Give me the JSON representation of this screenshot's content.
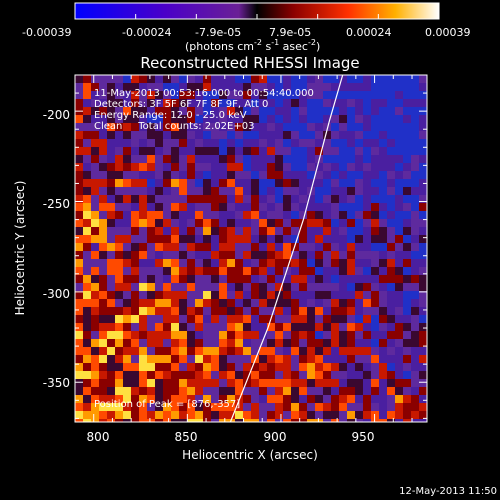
{
  "colorbar": {
    "tick_labels": [
      "-0.00039",
      "-0.00024",
      "-7.9e-05",
      "7.9e-05",
      "0.00024",
      "0.00039"
    ],
    "unit_main": "(photons cm",
    "unit_exp1": "-2",
    "unit_mid": " s",
    "unit_exp2": "-1",
    "unit_mid2": " asec",
    "unit_exp3": "-2",
    "unit_close": ")",
    "range": [
      -0.00039,
      0.00039
    ]
  },
  "info": {
    "line1": "11-May-2013 00:53:16.000 to 00:54:40.000",
    "line2": "Detectors: 3F 5F 6F 7F 8F 9F, Att 0",
    "line3": "Energy Range: 12.0 - 25.0 keV",
    "line4": "Clean     Total counts: 2.02E+03",
    "peak": "Position of Peak = [876,-357]"
  },
  "footer_timestamp": "12-May-2013 11:50",
  "chart_data": {
    "type": "heatmap",
    "title": "Reconstructed RHESSI Image",
    "xlabel": "Heliocentric X (arcsec)",
    "ylabel": "Heliocentric Y (arcsec)",
    "xlim": [
      790,
      978
    ],
    "ylim": [
      -372,
      -180
    ],
    "x_ticks": [
      800,
      850,
      900,
      950
    ],
    "y_ticks": [
      -200,
      -250,
      -300,
      -350
    ],
    "x_tick_labels": [
      "800",
      "850",
      "900",
      "950"
    ],
    "y_tick_labels": [
      "-200",
      "-250",
      "-300",
      "-350"
    ],
    "limb_curve": [
      [
        873,
        -372
      ],
      [
        893,
        -320
      ],
      [
        912,
        -260
      ],
      [
        926,
        -205
      ],
      [
        933,
        -180
      ]
    ],
    "peak_position": [
      876,
      -357
    ],
    "colors": {
      "limb": "#ffffff"
    }
  }
}
